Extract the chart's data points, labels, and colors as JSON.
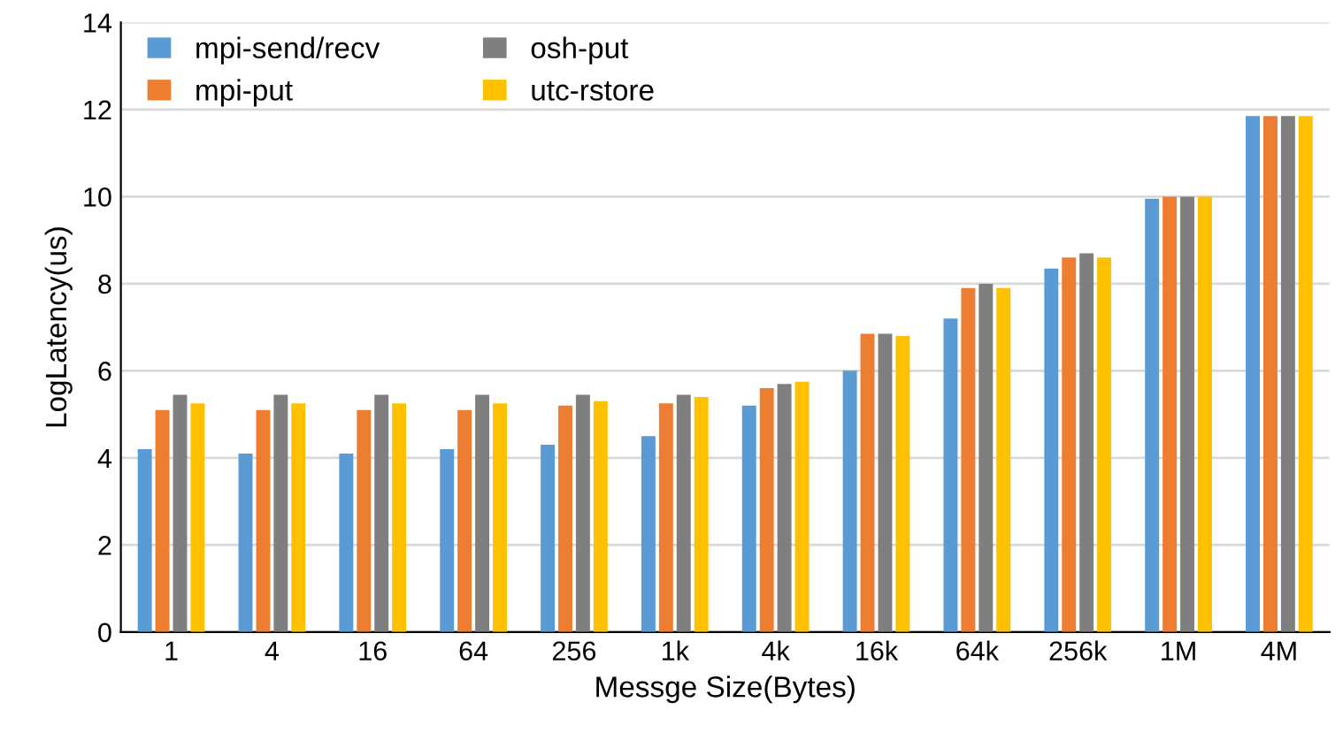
{
  "chart_data": {
    "type": "bar",
    "xlabel": "Messge Size(Bytes)",
    "ylabel": "LogLatency(us)",
    "categories": [
      "1",
      "4",
      "16",
      "64",
      "256",
      "1k",
      "4k",
      "16k",
      "64k",
      "256k",
      "1M",
      "4M"
    ],
    "series": [
      {
        "name": "mpi-send/recv",
        "color": "#5b9bd5",
        "values": [
          4.2,
          4.1,
          4.1,
          4.2,
          4.3,
          4.5,
          5.2,
          6.0,
          7.2,
          8.35,
          9.95,
          11.85
        ]
      },
      {
        "name": "mpi-put",
        "color": "#ed7d31",
        "values": [
          5.1,
          5.1,
          5.1,
          5.1,
          5.2,
          5.25,
          5.6,
          6.85,
          7.9,
          8.6,
          10.0,
          11.85
        ]
      },
      {
        "name": "osh-put",
        "color": "#7f7f7f",
        "values": [
          5.45,
          5.45,
          5.45,
          5.45,
          5.45,
          5.45,
          5.7,
          6.85,
          8.0,
          8.7,
          10.0,
          11.85
        ]
      },
      {
        "name": "utc-rstore",
        "color": "#ffc000",
        "values": [
          5.25,
          5.25,
          5.25,
          5.25,
          5.3,
          5.4,
          5.75,
          6.8,
          7.9,
          8.6,
          10.0,
          11.85
        ]
      }
    ],
    "ylim": [
      0,
      14
    ],
    "yticks": [
      0,
      2,
      4,
      6,
      8,
      10,
      12,
      14
    ],
    "grid": "y",
    "legend": "top left"
  }
}
